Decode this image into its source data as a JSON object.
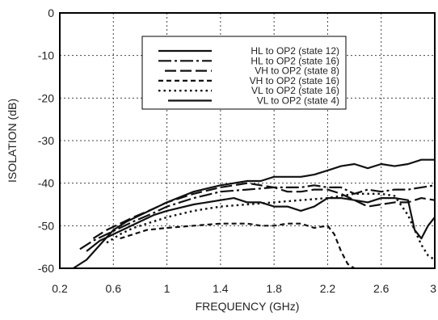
{
  "chart_data": {
    "type": "line",
    "xlabel": "FREQUENCY (GHz)",
    "ylabel": "ISOLATION (dB)",
    "xlim": [
      0.2,
      3
    ],
    "ylim": [
      -60,
      0
    ],
    "x_ticks": [
      "0.2",
      "0.6",
      "1",
      "1.4",
      "1.8",
      "2.2",
      "2.6",
      "3"
    ],
    "y_ticks": [
      "0",
      "-10",
      "-20",
      "-30",
      "-40",
      "-50",
      "-60"
    ],
    "grid": true,
    "legend_position": "top-center",
    "series": [
      {
        "name": "HL to OP2 (state 12)",
        "style": "solid",
        "x": [
          0.3,
          0.4,
          0.5,
          0.6,
          0.7,
          0.8,
          0.9,
          1.0,
          1.2,
          1.4,
          1.6,
          1.7,
          1.8,
          1.9,
          2.0,
          2.1,
          2.2,
          2.3,
          2.4,
          2.5,
          2.6,
          2.7,
          2.8,
          2.9,
          3.0
        ],
        "y": [
          -60,
          -58,
          -54.5,
          -51,
          -49,
          -47.5,
          -46,
          -44.5,
          -42,
          -40.5,
          -39.5,
          -39.5,
          -38.5,
          -38.5,
          -38.5,
          -38,
          -37,
          -36,
          -35.5,
          -36.5,
          -35.5,
          -36,
          -35.5,
          -34.5,
          -34.5
        ]
      },
      {
        "name": "HL to OP2 (state 16)",
        "style": "longdash-dot",
        "x": [
          0.35,
          0.45,
          0.55,
          0.65,
          0.75,
          0.9,
          1.0,
          1.2,
          1.4,
          1.6,
          1.8,
          2.0,
          2.1,
          2.2,
          2.3,
          2.4,
          2.5,
          2.6,
          2.7,
          2.8,
          2.9,
          3.0
        ],
        "y": [
          -55.5,
          -53.5,
          -52,
          -50.5,
          -49,
          -47,
          -45.5,
          -43.5,
          -42,
          -41.5,
          -41,
          -41,
          -40.5,
          -41,
          -41,
          -42.5,
          -41.5,
          -42,
          -41.5,
          -41.5,
          -41,
          -40.5
        ]
      },
      {
        "name": "VH to OP2 (state 8)",
        "style": "longdash",
        "x": [
          0.45,
          0.55,
          0.65,
          0.75,
          0.9,
          1.0,
          1.2,
          1.4,
          1.6,
          1.8,
          1.9,
          2.0,
          2.1,
          2.2,
          2.3,
          2.4,
          2.5,
          2.6,
          2.7,
          2.8,
          2.9,
          3.0
        ],
        "y": [
          -53,
          -51,
          -49.5,
          -48,
          -46,
          -44.5,
          -42.5,
          -41,
          -40,
          -41,
          -42,
          -42,
          -41.5,
          -41.5,
          -42.5,
          -44,
          -45.5,
          -45,
          -44.5,
          -44.5,
          -43.5,
          -44
        ]
      },
      {
        "name": "VH to OP2 (state 16)",
        "style": "dash",
        "x": [
          0.65,
          0.75,
          0.85,
          1.0,
          1.2,
          1.4,
          1.6,
          1.7,
          1.8,
          1.9,
          2.0,
          2.1,
          2.2,
          2.25,
          2.3,
          2.35,
          2.4
        ],
        "y": [
          -53,
          -52,
          -51,
          -50.5,
          -50,
          -49.5,
          -49.5,
          -50,
          -50,
          -49.5,
          -49.5,
          -50.5,
          -50,
          -52,
          -56,
          -59,
          -60
        ]
      },
      {
        "name": "VL to OP2 (state 16)",
        "style": "dot",
        "x": [
          0.55,
          0.65,
          0.75,
          0.9,
          1.0,
          1.2,
          1.4,
          1.6,
          1.8,
          2.0,
          2.2,
          2.4,
          2.6,
          2.7,
          2.8,
          2.85,
          2.9,
          2.95,
          3.0
        ],
        "y": [
          -54,
          -52,
          -50.5,
          -49,
          -48,
          -46.5,
          -45.5,
          -45,
          -44.5,
          -44,
          -43.5,
          -42.5,
          -42.5,
          -43,
          -47.5,
          -51,
          -54.5,
          -57,
          -58
        ]
      },
      {
        "name": "VL to OP2 (state 4)",
        "style": "solid",
        "x": [
          0.4,
          0.5,
          0.6,
          0.7,
          0.8,
          0.9,
          1.0,
          1.2,
          1.4,
          1.5,
          1.6,
          1.7,
          1.8,
          1.9,
          2.0,
          2.1,
          2.2,
          2.3,
          2.4,
          2.5,
          2.6,
          2.7,
          2.8,
          2.85,
          2.9,
          2.95,
          3.0
        ],
        "y": [
          -56,
          -53.5,
          -52,
          -50.5,
          -49,
          -47.5,
          -46.5,
          -45,
          -44,
          -43.5,
          -44.5,
          -44.5,
          -45.5,
          -45.5,
          -46.5,
          -45.5,
          -43.5,
          -43.5,
          -44,
          -44.5,
          -43.5,
          -43.5,
          -44,
          -51,
          -53,
          -50,
          -48
        ]
      }
    ]
  }
}
